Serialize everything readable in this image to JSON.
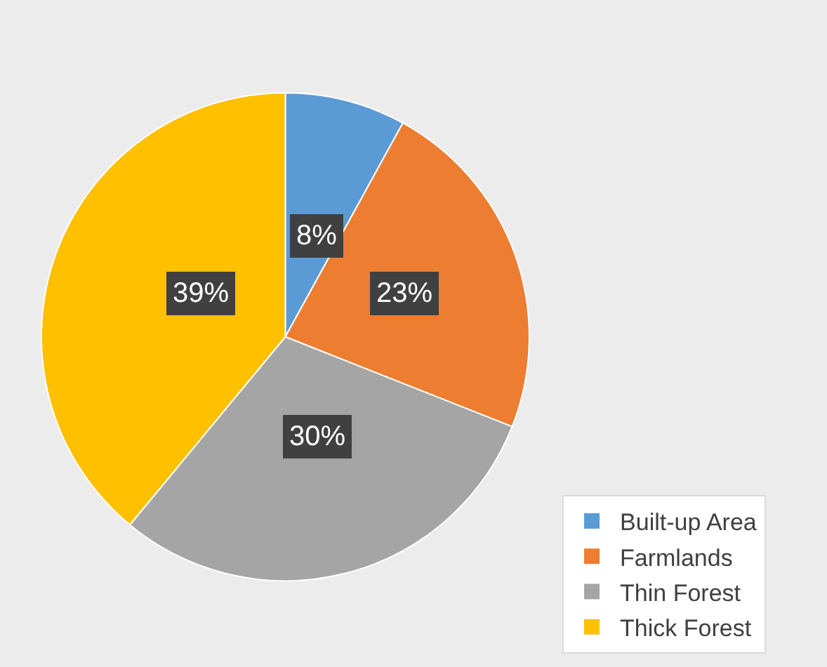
{
  "chart_data": {
    "type": "pie",
    "categories": [
      "Built-up Area",
      "Farmlands",
      "Thin Forest",
      "Thick Forest"
    ],
    "values": [
      8,
      23,
      30,
      39
    ],
    "colors": [
      "#5b9bd5",
      "#ed7d31",
      "#a5a5a5",
      "#ffc000"
    ],
    "value_labels": [
      "8%",
      "23%",
      "30%",
      "39%"
    ],
    "legend": "bottom right"
  }
}
